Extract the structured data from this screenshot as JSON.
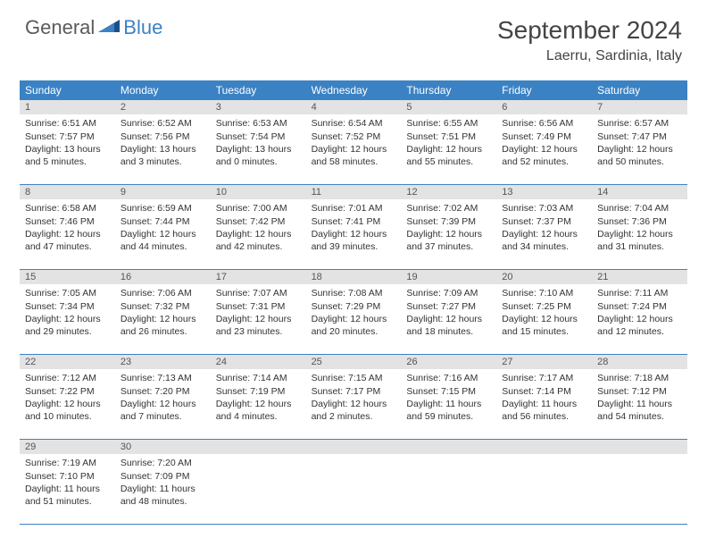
{
  "logo": {
    "general": "General",
    "blue": "Blue"
  },
  "title": "September 2024",
  "location": "Laerru, Sardinia, Italy",
  "colors": {
    "header_band": "#3b82c4",
    "daynum_band": "#e3e3e3",
    "rule": "#3b82c4",
    "logo_gray": "#5a5a5a",
    "logo_blue": "#3b82c4"
  },
  "weekdays": [
    "Sunday",
    "Monday",
    "Tuesday",
    "Wednesday",
    "Thursday",
    "Friday",
    "Saturday"
  ],
  "weeks": [
    [
      {
        "n": "1",
        "sunrise": "Sunrise: 6:51 AM",
        "sunset": "Sunset: 7:57 PM",
        "daylight": "Daylight: 13 hours and 5 minutes."
      },
      {
        "n": "2",
        "sunrise": "Sunrise: 6:52 AM",
        "sunset": "Sunset: 7:56 PM",
        "daylight": "Daylight: 13 hours and 3 minutes."
      },
      {
        "n": "3",
        "sunrise": "Sunrise: 6:53 AM",
        "sunset": "Sunset: 7:54 PM",
        "daylight": "Daylight: 13 hours and 0 minutes."
      },
      {
        "n": "4",
        "sunrise": "Sunrise: 6:54 AM",
        "sunset": "Sunset: 7:52 PM",
        "daylight": "Daylight: 12 hours and 58 minutes."
      },
      {
        "n": "5",
        "sunrise": "Sunrise: 6:55 AM",
        "sunset": "Sunset: 7:51 PM",
        "daylight": "Daylight: 12 hours and 55 minutes."
      },
      {
        "n": "6",
        "sunrise": "Sunrise: 6:56 AM",
        "sunset": "Sunset: 7:49 PM",
        "daylight": "Daylight: 12 hours and 52 minutes."
      },
      {
        "n": "7",
        "sunrise": "Sunrise: 6:57 AM",
        "sunset": "Sunset: 7:47 PM",
        "daylight": "Daylight: 12 hours and 50 minutes."
      }
    ],
    [
      {
        "n": "8",
        "sunrise": "Sunrise: 6:58 AM",
        "sunset": "Sunset: 7:46 PM",
        "daylight": "Daylight: 12 hours and 47 minutes."
      },
      {
        "n": "9",
        "sunrise": "Sunrise: 6:59 AM",
        "sunset": "Sunset: 7:44 PM",
        "daylight": "Daylight: 12 hours and 44 minutes."
      },
      {
        "n": "10",
        "sunrise": "Sunrise: 7:00 AM",
        "sunset": "Sunset: 7:42 PM",
        "daylight": "Daylight: 12 hours and 42 minutes."
      },
      {
        "n": "11",
        "sunrise": "Sunrise: 7:01 AM",
        "sunset": "Sunset: 7:41 PM",
        "daylight": "Daylight: 12 hours and 39 minutes."
      },
      {
        "n": "12",
        "sunrise": "Sunrise: 7:02 AM",
        "sunset": "Sunset: 7:39 PM",
        "daylight": "Daylight: 12 hours and 37 minutes."
      },
      {
        "n": "13",
        "sunrise": "Sunrise: 7:03 AM",
        "sunset": "Sunset: 7:37 PM",
        "daylight": "Daylight: 12 hours and 34 minutes."
      },
      {
        "n": "14",
        "sunrise": "Sunrise: 7:04 AM",
        "sunset": "Sunset: 7:36 PM",
        "daylight": "Daylight: 12 hours and 31 minutes."
      }
    ],
    [
      {
        "n": "15",
        "sunrise": "Sunrise: 7:05 AM",
        "sunset": "Sunset: 7:34 PM",
        "daylight": "Daylight: 12 hours and 29 minutes."
      },
      {
        "n": "16",
        "sunrise": "Sunrise: 7:06 AM",
        "sunset": "Sunset: 7:32 PM",
        "daylight": "Daylight: 12 hours and 26 minutes."
      },
      {
        "n": "17",
        "sunrise": "Sunrise: 7:07 AM",
        "sunset": "Sunset: 7:31 PM",
        "daylight": "Daylight: 12 hours and 23 minutes."
      },
      {
        "n": "18",
        "sunrise": "Sunrise: 7:08 AM",
        "sunset": "Sunset: 7:29 PM",
        "daylight": "Daylight: 12 hours and 20 minutes."
      },
      {
        "n": "19",
        "sunrise": "Sunrise: 7:09 AM",
        "sunset": "Sunset: 7:27 PM",
        "daylight": "Daylight: 12 hours and 18 minutes."
      },
      {
        "n": "20",
        "sunrise": "Sunrise: 7:10 AM",
        "sunset": "Sunset: 7:25 PM",
        "daylight": "Daylight: 12 hours and 15 minutes."
      },
      {
        "n": "21",
        "sunrise": "Sunrise: 7:11 AM",
        "sunset": "Sunset: 7:24 PM",
        "daylight": "Daylight: 12 hours and 12 minutes."
      }
    ],
    [
      {
        "n": "22",
        "sunrise": "Sunrise: 7:12 AM",
        "sunset": "Sunset: 7:22 PM",
        "daylight": "Daylight: 12 hours and 10 minutes."
      },
      {
        "n": "23",
        "sunrise": "Sunrise: 7:13 AM",
        "sunset": "Sunset: 7:20 PM",
        "daylight": "Daylight: 12 hours and 7 minutes."
      },
      {
        "n": "24",
        "sunrise": "Sunrise: 7:14 AM",
        "sunset": "Sunset: 7:19 PM",
        "daylight": "Daylight: 12 hours and 4 minutes."
      },
      {
        "n": "25",
        "sunrise": "Sunrise: 7:15 AM",
        "sunset": "Sunset: 7:17 PM",
        "daylight": "Daylight: 12 hours and 2 minutes."
      },
      {
        "n": "26",
        "sunrise": "Sunrise: 7:16 AM",
        "sunset": "Sunset: 7:15 PM",
        "daylight": "Daylight: 11 hours and 59 minutes."
      },
      {
        "n": "27",
        "sunrise": "Sunrise: 7:17 AM",
        "sunset": "Sunset: 7:14 PM",
        "daylight": "Daylight: 11 hours and 56 minutes."
      },
      {
        "n": "28",
        "sunrise": "Sunrise: 7:18 AM",
        "sunset": "Sunset: 7:12 PM",
        "daylight": "Daylight: 11 hours and 54 minutes."
      }
    ],
    [
      {
        "n": "29",
        "sunrise": "Sunrise: 7:19 AM",
        "sunset": "Sunset: 7:10 PM",
        "daylight": "Daylight: 11 hours and 51 minutes."
      },
      {
        "n": "30",
        "sunrise": "Sunrise: 7:20 AM",
        "sunset": "Sunset: 7:09 PM",
        "daylight": "Daylight: 11 hours and 48 minutes."
      },
      null,
      null,
      null,
      null,
      null
    ]
  ]
}
